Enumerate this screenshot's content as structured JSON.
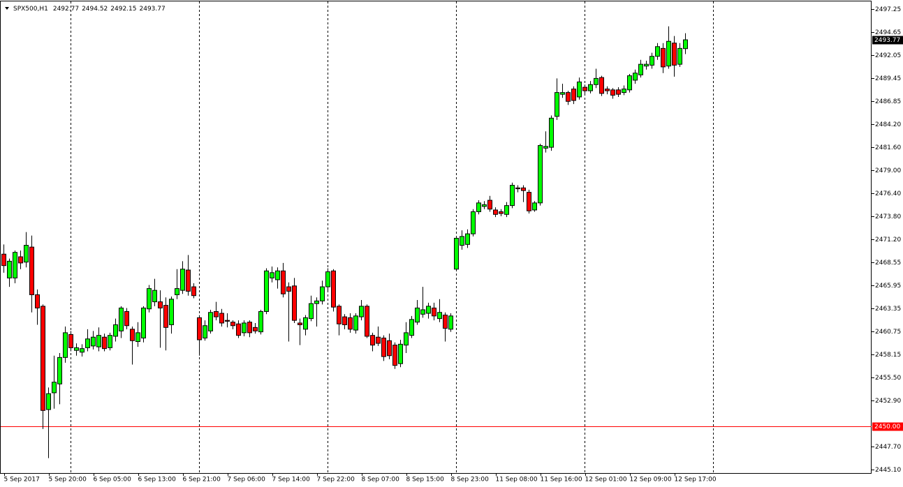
{
  "chart_data": {
    "type": "candlestick",
    "title": "SPX500,H1",
    "categories": [
      "5 Sep 2017",
      null,
      null,
      null,
      null,
      null,
      null,
      null,
      "5 Sep 20:00",
      null,
      null,
      null,
      null,
      null,
      null,
      null,
      "6 Sep 05:00",
      null,
      null,
      null,
      null,
      null,
      null,
      null,
      "6 Sep 13:00",
      null,
      null,
      null,
      null,
      null,
      null,
      null,
      "6 Sep 21:00",
      null,
      null,
      null,
      null,
      null,
      null,
      null,
      "7 Sep 06:00",
      null,
      null,
      null,
      null,
      null,
      null,
      null,
      "7 Sep 14:00",
      null,
      null,
      null,
      null,
      null,
      null,
      null,
      "7 Sep 22:00",
      null,
      null,
      null,
      null,
      null,
      null,
      null,
      "8 Sep 07:00",
      null,
      null,
      null,
      null,
      null,
      null,
      null,
      "8 Sep 15:00",
      null,
      null,
      null,
      null,
      null,
      null,
      null,
      "8 Sep 23:00",
      null,
      null,
      null,
      null,
      null,
      null,
      null,
      "11 Sep 08:00",
      null,
      null,
      null,
      null,
      null,
      null,
      null,
      "11 Sep 16:00",
      null,
      null,
      null,
      null,
      null,
      null,
      null,
      "12 Sep 01:00",
      null,
      null,
      null,
      null,
      null,
      null,
      null,
      "12 Sep 09:00",
      null,
      null,
      null,
      null,
      null,
      null,
      null,
      "12 Sep 17:00",
      null,
      null
    ],
    "open": [
      2469.5,
      2466.8,
      2466.8,
      2469.2,
      2468.6,
      2470.3,
      2464.9,
      2463.6,
      2451.9,
      2453.8,
      2454.8,
      2457.8,
      2460.4,
      2458.6,
      2458.4,
      2458.9,
      2459.1,
      2459.0,
      2460.1,
      2458.9,
      2460.2,
      2460.8,
      2463.0,
      2461.0,
      2459.6,
      2460.0,
      2463.3,
      2464.1,
      2464.1,
      2463.7,
      2461.5,
      2464.9,
      2465.4,
      2467.7,
      2465.8,
      2462.3,
      2460.0,
      2460.8,
      2463.0,
      2462.8,
      2462.0,
      2461.8,
      2461.6,
      2460.6,
      2461.8,
      2461.2,
      2460.7,
      2463.0,
      2466.8,
      2466.6,
      2467.6,
      2465.8,
      2465.9,
      2461.7,
      2461.0,
      2462.2,
      2463.9,
      2464.2,
      2465.8,
      2467.6,
      2463.6,
      2462.4,
      2462.3,
      2460.9,
      2462.4,
      2463.6,
      2460.3,
      2460.1,
      2460.0,
      2459.7,
      2459.2,
      2457.1,
      2459.2,
      2460.3,
      2461.8,
      2462.7,
      2462.8,
      2463.4,
      2462.2,
      2462.6,
      2461.0,
      2467.8,
      2470.5,
      2470.6,
      2471.8,
      2474.3,
      2474.9,
      2475.6,
      2474.5,
      2474.3,
      2474.0,
      2475.0,
      2477.0,
      2477.0,
      2476.5,
      2474.5,
      2475.3,
      2481.5,
      2481.6,
      2485.1,
      2487.6,
      2487.8,
      2488.2,
      2487.3,
      2488.4,
      2488.0,
      2488.7,
      2489.5,
      2488.2,
      2488.1,
      2488.1,
      2487.8,
      2488.1,
      2489.2,
      2489.8,
      2490.8,
      2490.9,
      2491.9,
      2492.8,
      2490.8,
      2493.4,
      2491.0,
      2492.77
    ],
    "high": [
      2470.6,
      2469.0,
      2469.9,
      2469.9,
      2472.0,
      2471.6,
      2465.5,
      2463.8,
      2454.4,
      2458.0,
      2458.3,
      2461.3,
      2460.8,
      2459.4,
      2459.3,
      2461.0,
      2460.8,
      2461.2,
      2460.5,
      2460.6,
      2462.2,
      2463.6,
      2463.4,
      2461.3,
      2461.8,
      2463.6,
      2466.0,
      2466.7,
      2465.4,
      2464.6,
      2464.7,
      2467.8,
      2468.7,
      2469.4,
      2466.2,
      2462.6,
      2462.0,
      2463.2,
      2464.1,
      2463.3,
      2462.8,
      2462.0,
      2462.0,
      2462.0,
      2462.0,
      2461.7,
      2463.2,
      2467.9,
      2468.1,
      2468.0,
      2468.5,
      2466.3,
      2466.8,
      2462.2,
      2462.6,
      2464.8,
      2464.6,
      2466.5,
      2467.9,
      2467.8,
      2463.8,
      2462.7,
      2462.8,
      2462.8,
      2464.3,
      2463.8,
      2460.6,
      2461.3,
      2460.3,
      2460.5,
      2459.5,
      2459.8,
      2461.8,
      2462.5,
      2464.3,
      2465.8,
      2464.0,
      2464.0,
      2464.4,
      2462.9,
      2462.8,
      2471.5,
      2472.2,
      2472.3,
      2474.6,
      2475.6,
      2475.5,
      2476.1,
      2474.8,
      2474.6,
      2475.4,
      2477.6,
      2477.3,
      2477.3,
      2476.8,
      2475.5,
      2482.0,
      2483.4,
      2485.2,
      2489.4,
      2488.8,
      2488.0,
      2488.5,
      2489.5,
      2488.7,
      2489.1,
      2490.5,
      2489.7,
      2488.5,
      2488.3,
      2488.4,
      2488.6,
      2489.9,
      2490.4,
      2491.5,
      2491.4,
      2492.3,
      2493.4,
      2493.4,
      2495.3,
      2494.2,
      2493.4,
      2494.52
    ],
    "low": [
      2467.4,
      2465.8,
      2466.2,
      2467.8,
      2468.0,
      2462.9,
      2461.5,
      2449.7,
      2446.4,
      2452.0,
      2452.5,
      2457.2,
      2458.5,
      2458.0,
      2457.9,
      2458.5,
      2458.7,
      2458.5,
      2458.5,
      2458.6,
      2459.6,
      2460.0,
      2461.0,
      2457.0,
      2459.0,
      2459.5,
      2462.9,
      2463.6,
      2458.9,
      2458.6,
      2460.5,
      2464.4,
      2465.0,
      2464.8,
      2464.5,
      2458.0,
      2459.7,
      2460.5,
      2462.0,
      2461.3,
      2461.2,
      2461.0,
      2460.0,
      2460.2,
      2460.1,
      2460.5,
      2460.4,
      2462.7,
      2466.3,
      2465.6,
      2464.6,
      2459.6,
      2461.7,
      2459.2,
      2460.3,
      2461.9,
      2461.3,
      2463.8,
      2465.4,
      2463.0,
      2460.3,
      2461.0,
      2460.6,
      2460.5,
      2462.0,
      2460.0,
      2458.5,
      2459.1,
      2457.4,
      2457.6,
      2456.5,
      2456.7,
      2458.3,
      2460.0,
      2461.5,
      2462.3,
      2462.2,
      2462.0,
      2461.8,
      2459.6,
      2460.7,
      2467.7,
      2470.0,
      2470.2,
      2471.5,
      2474.0,
      2474.6,
      2474.3,
      2473.7,
      2473.8,
      2473.7,
      2474.7,
      2476.5,
      2475.4,
      2474.1,
      2474.3,
      2475.0,
      2481.0,
      2481.2,
      2484.7,
      2487.2,
      2486.4,
      2486.5,
      2487.0,
      2487.7,
      2487.7,
      2488.3,
      2487.4,
      2487.6,
      2487.1,
      2487.3,
      2487.5,
      2487.8,
      2488.8,
      2489.5,
      2490.4,
      2490.5,
      2491.5,
      2490.0,
      2490.5,
      2489.6,
      2490.7,
      2492.15
    ],
    "close": [
      2468.2,
      2468.7,
      2469.7,
      2468.5,
      2470.5,
      2464.9,
      2463.4,
      2451.8,
      2453.7,
      2455.0,
      2457.8,
      2460.6,
      2458.9,
      2458.9,
      2458.8,
      2459.9,
      2460.1,
      2460.3,
      2458.8,
      2460.3,
      2461.5,
      2463.4,
      2461.4,
      2459.7,
      2460.6,
      2463.4,
      2465.6,
      2465.4,
      2463.4,
      2461.2,
      2464.4,
      2465.6,
      2467.8,
      2465.3,
      2464.8,
      2459.8,
      2461.4,
      2462.9,
      2462.4,
      2461.7,
      2461.9,
      2461.4,
      2460.3,
      2461.7,
      2460.6,
      2460.8,
      2463.0,
      2467.6,
      2467.4,
      2467.6,
      2465.0,
      2465.3,
      2462.0,
      2461.5,
      2462.3,
      2463.9,
      2464.2,
      2465.8,
      2467.5,
      2463.5,
      2461.6,
      2461.5,
      2461.0,
      2462.5,
      2463.6,
      2460.2,
      2459.2,
      2459.4,
      2457.9,
      2458.0,
      2456.9,
      2459.3,
      2460.6,
      2462.1,
      2463.4,
      2463.2,
      2463.6,
      2462.5,
      2462.9,
      2461.1,
      2462.5,
      2471.3,
      2471.5,
      2471.8,
      2474.3,
      2475.3,
      2475.1,
      2474.6,
      2474.0,
      2474.1,
      2475.0,
      2477.3,
      2476.9,
      2476.7,
      2474.4,
      2475.3,
      2481.8,
      2481.7,
      2484.9,
      2487.8,
      2487.8,
      2486.8,
      2486.9,
      2489.0,
      2488.0,
      2488.7,
      2489.4,
      2487.7,
      2488.0,
      2487.5,
      2487.6,
      2488.2,
      2489.7,
      2490.0,
      2491.0,
      2491.0,
      2491.9,
      2493.0,
      2490.7,
      2493.6,
      2490.9,
      2492.8,
      2493.77
    ],
    "up_color": "#00ff00",
    "down_color": "#ff0000",
    "ylim": [
      2444.71,
      2498.12
    ],
    "yticks": [
      2497.25,
      2494.65,
      2492.05,
      2489.45,
      2486.85,
      {
        "value": 2484.2,
        "label": "2484.20"
      },
      {
        "value": 2481.6,
        "label": "2481.60"
      },
      {
        "value": 2479,
        "label": "2479.00"
      },
      {
        "value": 2476.4,
        "label": "2476.40"
      },
      {
        "value": 2473.8,
        "label": "2473.80"
      },
      {
        "value": 2471.2,
        "label": "2471.20"
      },
      2468.55,
      2465.95,
      2463.35,
      2460.75,
      2458.15,
      {
        "value": 2455.5,
        "label": "2455.50"
      },
      {
        "value": 2452.9,
        "label": "2452.90"
      },
      {
        "value": 2447.7,
        "label": "2447.70"
      },
      {
        "value": 2445.1,
        "label": "2445.10"
      }
    ],
    "level": {
      "value": 2450,
      "label": "2450.00"
    },
    "level_color": "#ff0000"
  }
}
